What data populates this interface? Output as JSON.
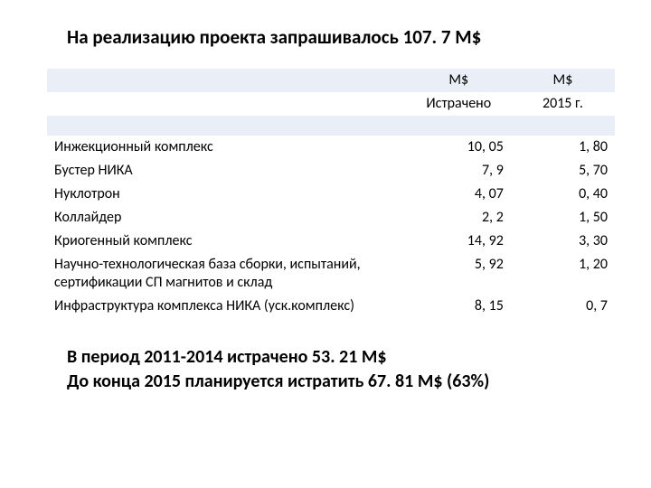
{
  "title": "На реализацию проекта запрашивалось 107. 7 M$",
  "colors": {
    "row_alt_bg": "#e9eef7",
    "text": "#000000",
    "background": "#ffffff"
  },
  "table": {
    "header_row1": {
      "label": "",
      "col1": "M$",
      "col2": "M$"
    },
    "header_row2": {
      "label": "",
      "col1": "Истрачено",
      "col2": "2015 г."
    },
    "rows": [
      {
        "label": "Инжекционный комплекс",
        "c1": "10, 05",
        "c2": "1, 80"
      },
      {
        "label": "Бустер НИКА",
        "c1": "7, 9",
        "c2": "5, 70"
      },
      {
        "label": "Нуклотрон",
        "c1": "4, 07",
        "c2": "0, 40"
      },
      {
        "label": "Коллайдер",
        "c1": "2, 2",
        "c2": "1, 50"
      },
      {
        "label": "Криогенный комплекс",
        "c1": "14, 92",
        "c2": "3, 30"
      },
      {
        "label": "Научно-технологическая база сборки, испытаний, сертификации СП магнитов и склад",
        "c1": "5, 92",
        "c2": "1, 20"
      },
      {
        "label": "Инфраструктура комплекса НИКА (уск.комплекс)",
        "c1": "8, 15",
        "c2": "0, 7"
      }
    ]
  },
  "footer": {
    "line1": "В период 2011-2014 истрачено 53. 21 M$",
    "line2": "До конца 2015 планируется истратить 67. 81 M$ (63%)"
  }
}
